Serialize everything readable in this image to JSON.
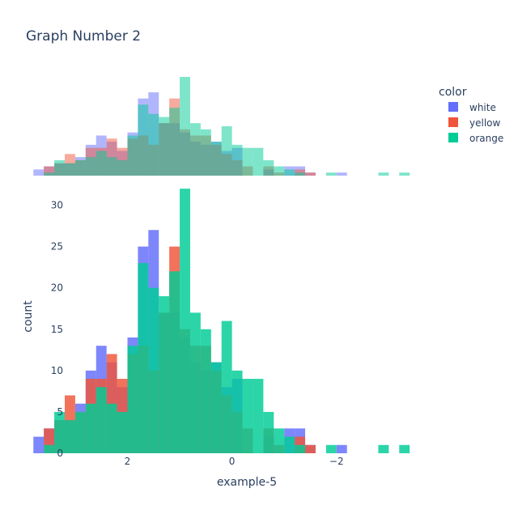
{
  "chart_data": {
    "type": "bar",
    "title": "Graph Number 2",
    "xlabel": "example-5",
    "ylabel": "count",
    "xaxis_reversed": true,
    "bin_width": 0.2,
    "bin_start": -3.4,
    "xlim": [
      3.2,
      -3.8
    ],
    "x_ticks": [
      2,
      0,
      -2
    ],
    "x_tick_labels": [
      "2",
      "0",
      "−2"
    ],
    "ylim": [
      0,
      32.5
    ],
    "y_ticks": [
      0,
      5,
      10,
      15,
      20,
      25,
      30
    ],
    "y_tick_labels": [
      "0",
      "5",
      "10",
      "15",
      "20",
      "25",
      "30"
    ],
    "barmode": "overlay",
    "legend": {
      "title": "color",
      "placement": "right"
    },
    "marginal_top": {
      "type": "histogram",
      "opacity": 0.5
    },
    "series": [
      {
        "name": "white",
        "color": "#636efa",
        "counts": [
          0,
          0,
          0,
          0,
          0,
          0,
          1,
          0,
          0,
          1,
          3,
          3,
          0,
          2,
          0,
          0,
          9,
          8,
          11,
          10,
          11,
          14,
          17,
          17,
          27,
          25,
          14,
          8,
          11,
          13,
          10,
          6,
          4,
          4,
          3,
          2,
          0,
          0,
          0,
          0,
          0,
          0
        ]
      },
      {
        "name": "yellow",
        "color": "#ef553b",
        "counts": [
          0,
          0,
          0,
          0,
          0,
          0,
          0,
          0,
          0,
          1,
          2,
          0,
          1,
          3,
          0,
          3,
          5,
          7,
          10,
          13,
          13,
          15,
          25,
          17,
          10,
          13,
          12,
          9,
          12,
          9,
          9,
          5,
          7,
          4,
          3,
          0,
          0,
          0,
          0,
          0,
          0,
          1
        ]
      },
      {
        "name": "orange",
        "color": "#00cc96",
        "counts": [
          1,
          0,
          1,
          0,
          0,
          0,
          0,
          1,
          0,
          0,
          1,
          2,
          3,
          5,
          9,
          9,
          10,
          16,
          11,
          15,
          17,
          32,
          22,
          19,
          20,
          23,
          13,
          5,
          6,
          8,
          6,
          5,
          4,
          5,
          1,
          0,
          0,
          0,
          0,
          0,
          1,
          2
        ]
      }
    ]
  }
}
